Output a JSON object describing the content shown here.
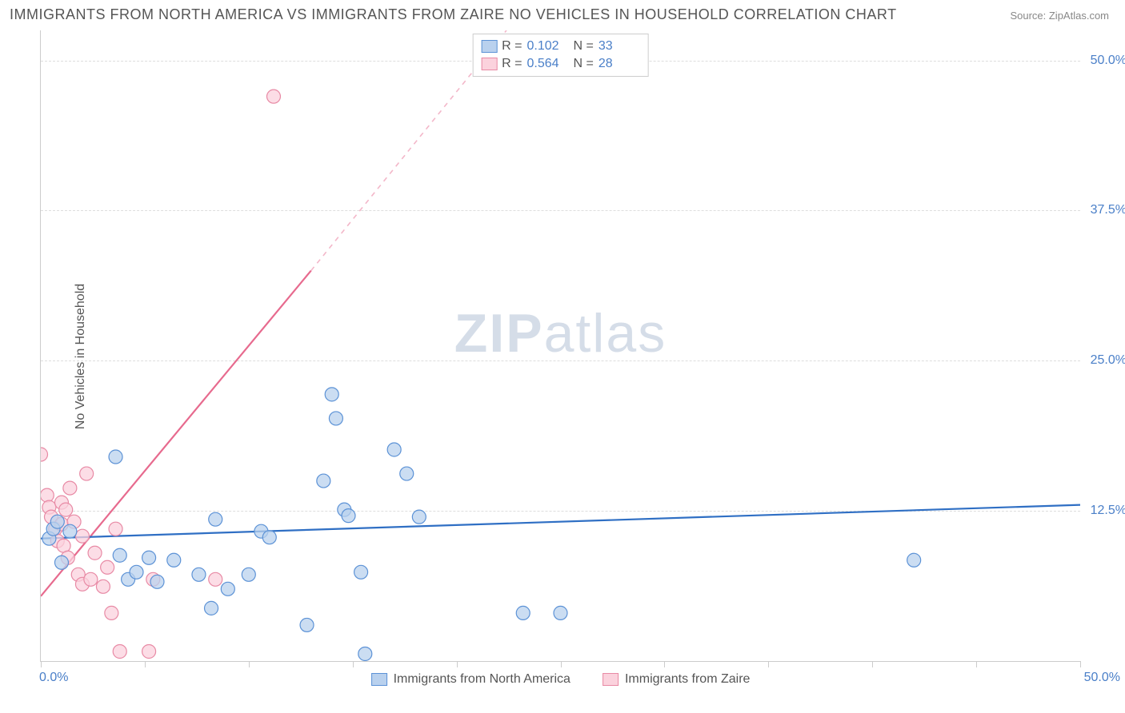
{
  "title": "IMMIGRANTS FROM NORTH AMERICA VS IMMIGRANTS FROM ZAIRE NO VEHICLES IN HOUSEHOLD CORRELATION CHART",
  "source": "Source: ZipAtlas.com",
  "ylabel": "No Vehicles in Household",
  "watermark_zip": "ZIP",
  "watermark_atlas": "atlas",
  "chart": {
    "type": "scatter",
    "xlim": [
      0,
      50
    ],
    "ylim": [
      0,
      52.5
    ],
    "ytick_labels": [
      "12.5%",
      "25.0%",
      "37.5%",
      "50.0%"
    ],
    "ytick_values": [
      12.5,
      25.0,
      37.5,
      50.0
    ],
    "xtick_values": [
      0,
      5,
      10,
      15,
      20,
      25,
      30,
      35,
      40,
      45,
      50
    ],
    "xtick_left": "0.0%",
    "xtick_right": "50.0%",
    "grid_color": "#dddddd",
    "background_color": "#ffffff",
    "radius": 8.5
  },
  "series": {
    "blue": {
      "label": "Immigrants from North America",
      "fill": "#b9d1ee",
      "stroke": "#5c92d6",
      "R": "0.102",
      "N": "33",
      "trend": {
        "x1": 0,
        "y1": 10.2,
        "x2": 50,
        "y2": 13.0,
        "color": "#2f6fc4",
        "width": 2.2
      },
      "points": [
        [
          0.4,
          10.2
        ],
        [
          0.6,
          11.0
        ],
        [
          0.8,
          11.6
        ],
        [
          1.0,
          8.2
        ],
        [
          1.4,
          10.8
        ],
        [
          3.6,
          17.0
        ],
        [
          3.8,
          8.8
        ],
        [
          4.2,
          6.8
        ],
        [
          4.6,
          7.4
        ],
        [
          5.2,
          8.6
        ],
        [
          5.6,
          6.6
        ],
        [
          6.4,
          8.4
        ],
        [
          7.6,
          7.2
        ],
        [
          8.2,
          4.4
        ],
        [
          8.4,
          11.8
        ],
        [
          10.0,
          7.2
        ],
        [
          10.6,
          10.8
        ],
        [
          11.0,
          10.3
        ],
        [
          12.8,
          3.0
        ],
        [
          14.0,
          22.2
        ],
        [
          14.2,
          20.2
        ],
        [
          13.6,
          15.0
        ],
        [
          14.6,
          12.6
        ],
        [
          14.8,
          12.1
        ],
        [
          15.4,
          7.4
        ],
        [
          15.6,
          0.6
        ],
        [
          17.0,
          17.6
        ],
        [
          18.2,
          12.0
        ],
        [
          17.6,
          15.6
        ],
        [
          23.2,
          4.0
        ],
        [
          25.0,
          4.0
        ],
        [
          42.0,
          8.4
        ],
        [
          9.0,
          6.0
        ]
      ]
    },
    "pink": {
      "label": "Immigrants from Zaire",
      "fill": "#fbd2dd",
      "stroke": "#e88aa5",
      "R": "0.564",
      "N": "28",
      "trend_solid": {
        "x1": 0,
        "y1": 5.4,
        "x2": 13,
        "y2": 32.5,
        "color": "#e76a8e",
        "width": 2.2
      },
      "trend_dash": {
        "x1": 13,
        "y1": 32.5,
        "x2": 22.4,
        "y2": 52.5,
        "color": "#f3b7c9",
        "width": 1.6
      },
      "points": [
        [
          0.0,
          17.2
        ],
        [
          0.3,
          13.8
        ],
        [
          0.4,
          12.8
        ],
        [
          0.5,
          12.0
        ],
        [
          0.7,
          11.0
        ],
        [
          0.8,
          10.0
        ],
        [
          1.0,
          13.2
        ],
        [
          1.0,
          11.4
        ],
        [
          1.1,
          9.6
        ],
        [
          1.3,
          8.6
        ],
        [
          1.4,
          14.4
        ],
        [
          1.6,
          11.6
        ],
        [
          1.8,
          7.2
        ],
        [
          2.0,
          6.4
        ],
        [
          2.0,
          10.4
        ],
        [
          2.2,
          15.6
        ],
        [
          2.4,
          6.8
        ],
        [
          2.6,
          9.0
        ],
        [
          3.0,
          6.2
        ],
        [
          3.2,
          7.8
        ],
        [
          3.4,
          4.0
        ],
        [
          3.6,
          11.0
        ],
        [
          3.8,
          0.8
        ],
        [
          5.2,
          0.8
        ],
        [
          5.4,
          6.8
        ],
        [
          8.4,
          6.8
        ],
        [
          11.2,
          47.0
        ],
        [
          1.2,
          12.6
        ]
      ]
    }
  },
  "legend_stats_label_R": "R =",
  "legend_stats_label_N": "N ="
}
